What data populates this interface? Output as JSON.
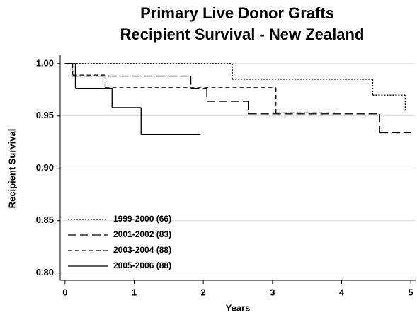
{
  "chart_data": {
    "type": "step",
    "title": [
      "Primary Live Donor Grafts",
      "Recipient Survival  -  New Zealand"
    ],
    "x_label": "Years",
    "y_label": "Recipient Survival",
    "xlim": [
      -0.07,
      5.07
    ],
    "ylim": [
      0.793,
      1.008
    ],
    "xticks": [
      0,
      1,
      2,
      3,
      4,
      5
    ],
    "yticks": [
      {
        "value": 0.8,
        "label": "0.80"
      },
      {
        "value": 0.85,
        "label": "0.85"
      },
      {
        "value": 0.9,
        "label": "0.90"
      },
      {
        "value": 0.95,
        "label": "0.95"
      },
      {
        "value": 1,
        "label": "1.00"
      }
    ],
    "grid": true,
    "legend": "lower left",
    "series": [
      {
        "name": "1999-2000 (66)",
        "color": "#000",
        "dash": "2,2",
        "x": [
          0,
          2.42,
          4.45,
          4.92
        ],
        "values": [
          1.0,
          0.985,
          0.97,
          0.955
        ]
      },
      {
        "name": "2001-2002 (83)",
        "color": "#000",
        "dash": "12,5",
        "x": [
          0,
          0.1,
          1.82,
          2.05,
          2.65,
          4.55,
          5.0
        ],
        "values": [
          1.0,
          0.988,
          0.976,
          0.964,
          0.952,
          0.934,
          0.934
        ]
      },
      {
        "name": "2003-2004 (88)",
        "color": "#000",
        "dash": "6,4",
        "x": [
          0,
          0.11,
          0.58,
          3.05,
          3.9
        ],
        "values": [
          1.0,
          0.989,
          0.977,
          0.953,
          0.953
        ]
      },
      {
        "name": "2005-2006 (88)",
        "color": "#000",
        "dash": "none",
        "x": [
          0,
          0.15,
          0.68,
          1.1,
          1.96
        ],
        "values": [
          1.0,
          0.976,
          0.958,
          0.932,
          0.932
        ]
      }
    ]
  }
}
